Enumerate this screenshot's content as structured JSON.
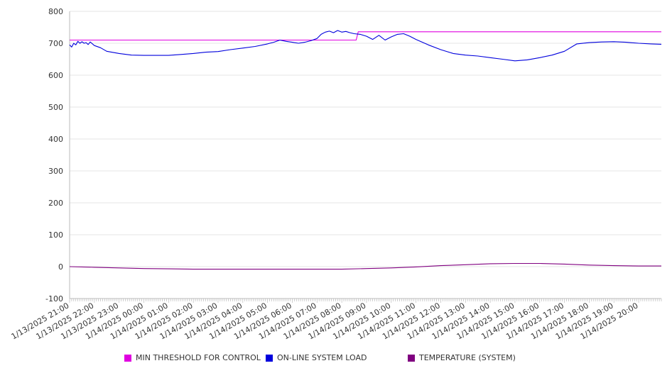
{
  "chart_data": {
    "type": "line",
    "title": "",
    "xlabel": "",
    "ylabel": "",
    "ylim": [
      -100,
      800
    ],
    "yticks": [
      -100,
      0,
      100,
      200,
      300,
      400,
      500,
      600,
      700,
      800
    ],
    "grid": "horizontal",
    "legend_position": "bottom",
    "x_tick_labels": [
      "1/13/2025 21:00",
      "1/13/2025 22:00",
      "1/13/2025 23:00",
      "1/14/2025 00:00",
      "1/14/2025 01:00",
      "1/14/2025 02:00",
      "1/14/2025 03:00",
      "1/14/2025 04:00",
      "1/14/2025 05:00",
      "1/14/2025 06:00",
      "1/14/2025 07:00",
      "1/14/2025 08:00",
      "1/14/2025 09:00",
      "1/14/2025 10:00",
      "1/14/2025 11:00",
      "1/14/2025 12:00",
      "1/14/2025 13:00",
      "1/14/2025 14:00",
      "1/14/2025 15:00",
      "1/14/2025 16:00",
      "1/14/2025 17:00",
      "1/14/2025 18:00",
      "1/14/2025 19:00",
      "1/14/2025 20:00"
    ],
    "series": [
      {
        "name": "MIN THRESHOLD FOR CONTROL",
        "color": "#e000e0",
        "x": [
          "1/13/2025 21:00",
          "1/14/2025 08:35",
          "1/14/2025 08:40",
          "1/14/2025 20:55"
        ],
        "values": [
          710,
          710,
          736,
          736
        ]
      },
      {
        "name": "ON-LINE SYSTEM LOAD",
        "color": "#0000dd",
        "x": [
          "1/13/2025 21:00",
          "1/13/2025 21:05",
          "1/13/2025 21:10",
          "1/13/2025 21:15",
          "1/13/2025 21:20",
          "1/13/2025 21:25",
          "1/13/2025 21:30",
          "1/13/2025 21:35",
          "1/13/2025 21:40",
          "1/13/2025 21:45",
          "1/13/2025 21:50",
          "1/13/2025 22:00",
          "1/13/2025 22:15",
          "1/13/2025 22:30",
          "1/13/2025 23:00",
          "1/13/2025 23:30",
          "1/14/2025 00:00",
          "1/14/2025 00:30",
          "1/14/2025 01:00",
          "1/14/2025 01:30",
          "1/14/2025 02:00",
          "1/14/2025 02:30",
          "1/14/2025 03:00",
          "1/14/2025 03:30",
          "1/14/2025 04:00",
          "1/14/2025 04:30",
          "1/14/2025 05:00",
          "1/14/2025 05:15",
          "1/14/2025 05:30",
          "1/14/2025 05:45",
          "1/14/2025 06:00",
          "1/14/2025 06:15",
          "1/14/2025 06:30",
          "1/14/2025 06:45",
          "1/14/2025 07:00",
          "1/14/2025 07:10",
          "1/14/2025 07:20",
          "1/14/2025 07:30",
          "1/14/2025 07:40",
          "1/14/2025 07:50",
          "1/14/2025 08:00",
          "1/14/2025 08:10",
          "1/14/2025 08:20",
          "1/14/2025 08:30",
          "1/14/2025 08:45",
          "1/14/2025 09:00",
          "1/14/2025 09:15",
          "1/14/2025 09:30",
          "1/14/2025 09:45",
          "1/14/2025 10:00",
          "1/14/2025 10:15",
          "1/14/2025 10:30",
          "1/14/2025 10:45",
          "1/14/2025 11:00",
          "1/14/2025 11:30",
          "1/14/2025 12:00",
          "1/14/2025 12:30",
          "1/14/2025 13:00",
          "1/14/2025 13:30",
          "1/14/2025 14:00",
          "1/14/2025 14:30",
          "1/14/2025 15:00",
          "1/14/2025 15:30",
          "1/14/2025 16:00",
          "1/14/2025 16:30",
          "1/14/2025 17:00",
          "1/14/2025 17:30",
          "1/14/2025 18:00",
          "1/14/2025 18:30",
          "1/14/2025 19:00",
          "1/14/2025 19:30",
          "1/14/2025 20:00",
          "1/14/2025 20:30",
          "1/14/2025 20:55"
        ],
        "values": [
          695,
          688,
          700,
          695,
          706,
          700,
          705,
          700,
          702,
          696,
          704,
          693,
          686,
          675,
          668,
          663,
          662,
          662,
          662,
          665,
          668,
          672,
          674,
          680,
          685,
          690,
          698,
          703,
          710,
          706,
          703,
          700,
          703,
          708,
          715,
          728,
          735,
          738,
          733,
          740,
          735,
          737,
          733,
          730,
          728,
          722,
          712,
          725,
          710,
          720,
          728,
          730,
          722,
          712,
          695,
          680,
          668,
          663,
          660,
          655,
          650,
          645,
          648,
          655,
          663,
          675,
          698,
          702,
          704,
          705,
          703,
          700,
          698,
          697
        ]
      },
      {
        "name": "TEMPERATURE (SYSTEM)",
        "color": "#800080",
        "x": [
          "1/13/2025 21:00",
          "1/13/2025 22:00",
          "1/13/2025 23:00",
          "1/14/2025 00:00",
          "1/14/2025 01:00",
          "1/14/2025 02:00",
          "1/14/2025 03:00",
          "1/14/2025 04:00",
          "1/14/2025 05:00",
          "1/14/2025 06:00",
          "1/14/2025 07:00",
          "1/14/2025 08:00",
          "1/14/2025 09:00",
          "1/14/2025 10:00",
          "1/14/2025 11:00",
          "1/14/2025 12:00",
          "1/14/2025 13:00",
          "1/14/2025 14:00",
          "1/14/2025 15:00",
          "1/14/2025 16:00",
          "1/14/2025 17:00",
          "1/14/2025 18:00",
          "1/14/2025 19:00",
          "1/14/2025 20:00",
          "1/14/2025 20:55"
        ],
        "values": [
          0,
          -2,
          -4,
          -6,
          -7,
          -8,
          -8,
          -8,
          -8,
          -8,
          -8,
          -8,
          -6,
          -4,
          -1,
          3,
          6,
          9,
          10,
          10,
          8,
          5,
          3,
          2,
          2
        ]
      }
    ]
  }
}
